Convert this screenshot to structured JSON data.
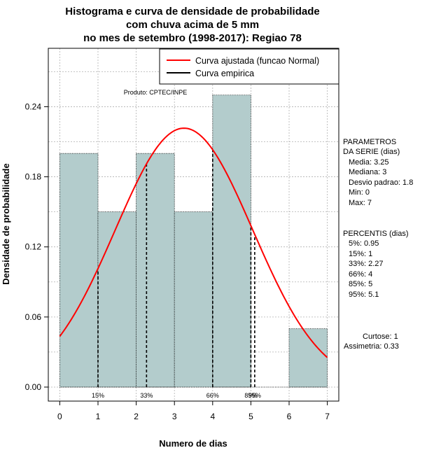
{
  "chart_data": {
    "type": "bar",
    "title_lines": [
      "Histograma e curva de densidade de probabilidade",
      "com chuva acima de 5 mm",
      "no mes de setembro (1998-2017): Regiao 78"
    ],
    "xlabel": "Numero de dias",
    "ylabel": "Densidade de probabilidade",
    "xlim": [
      -0.3,
      7.3
    ],
    "ylim": [
      -0.012,
      0.29
    ],
    "x_ticks": [
      "0",
      "1",
      "2",
      "3",
      "4",
      "5",
      "6",
      "7"
    ],
    "y_ticks": [
      "0.00",
      "0.06",
      "0.12",
      "0.18",
      "0.24"
    ],
    "bins": [
      {
        "from": 0,
        "to": 1,
        "density": 0.2
      },
      {
        "from": 1,
        "to": 2,
        "density": 0.15
      },
      {
        "from": 2,
        "to": 3,
        "density": 0.2
      },
      {
        "from": 3,
        "to": 4,
        "density": 0.15
      },
      {
        "from": 4,
        "to": 5,
        "density": 0.25
      },
      {
        "from": 5,
        "to": 6,
        "density": 0.0
      },
      {
        "from": 6,
        "to": 7,
        "density": 0.05
      }
    ],
    "normal_fit": {
      "mean": 3.25,
      "sd": 1.8
    },
    "percentile_lines": [
      {
        "label": "15%",
        "x": 1.0
      },
      {
        "label": "33%",
        "x": 2.27
      },
      {
        "label": "66%",
        "x": 4.0
      },
      {
        "label": "85%",
        "x": 5.0
      },
      {
        "label": "95%",
        "x": 5.1
      }
    ],
    "legend": {
      "position": "top-right",
      "entries": [
        {
          "label": "Curva ajustada (funcao Normal)",
          "color": "#ff0000"
        },
        {
          "label": "Curva empirica",
          "color": "#000000"
        }
      ]
    },
    "product_label": "Produto: CPTEC/INPE",
    "colors": {
      "bar_fill": "#b3cccc",
      "curve": "#ff0000",
      "grid": "#b0b0b0"
    }
  },
  "stats": {
    "parametros": [
      "PARAMETROS",
      "DA SERIE (dias)",
      "Media: 3.25",
      "Mediana: 3",
      "Desvio padrao: 1.8",
      "Min: 0",
      "Max: 7"
    ],
    "percentis": [
      "PERCENTIS (dias)",
      "5%: 0.95",
      "15%: 1",
      "33%: 2.27",
      "66%: 4",
      "85%: 5",
      "95%: 5.1"
    ],
    "curtose": "Curtose: 1",
    "assimetria": "Assimetria: 0.33"
  }
}
